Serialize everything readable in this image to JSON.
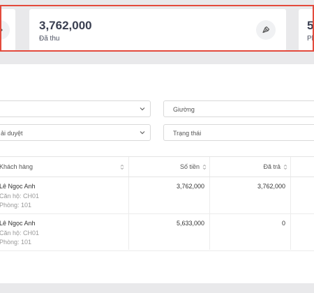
{
  "stats": {
    "main": {
      "value": "3,762,000",
      "label": "Đã thu"
    },
    "right": {
      "value": "5",
      "label": "Ph"
    }
  },
  "filters": {
    "apartment": {
      "value": "",
      "icon": "chevron-down-icon"
    },
    "bed": {
      "value": "Giường"
    },
    "approval": {
      "value": "ải duyệt",
      "icon": "chevron-down-icon"
    },
    "status": {
      "value": "Trạng thái"
    }
  },
  "table": {
    "headers": {
      "customer": "Khách hàng",
      "amount": "Số tiền",
      "paid": "Đã trả"
    },
    "rows": [
      {
        "name": "Lê Ngọc Anh",
        "apartment": "Căn hộ: CH01",
        "room": "Phòng: 101",
        "amount": "3,762,000",
        "paid": "3,762,000"
      },
      {
        "name": "Lê Ngọc Anh",
        "apartment": "Căn hộ: CH01",
        "room": "Phòng: 101",
        "amount": "5,633,000",
        "paid": "0"
      }
    ]
  },
  "colors": {
    "highlight": "#e34a3c",
    "card": "#ffffff",
    "background": "#e9e9eb"
  }
}
